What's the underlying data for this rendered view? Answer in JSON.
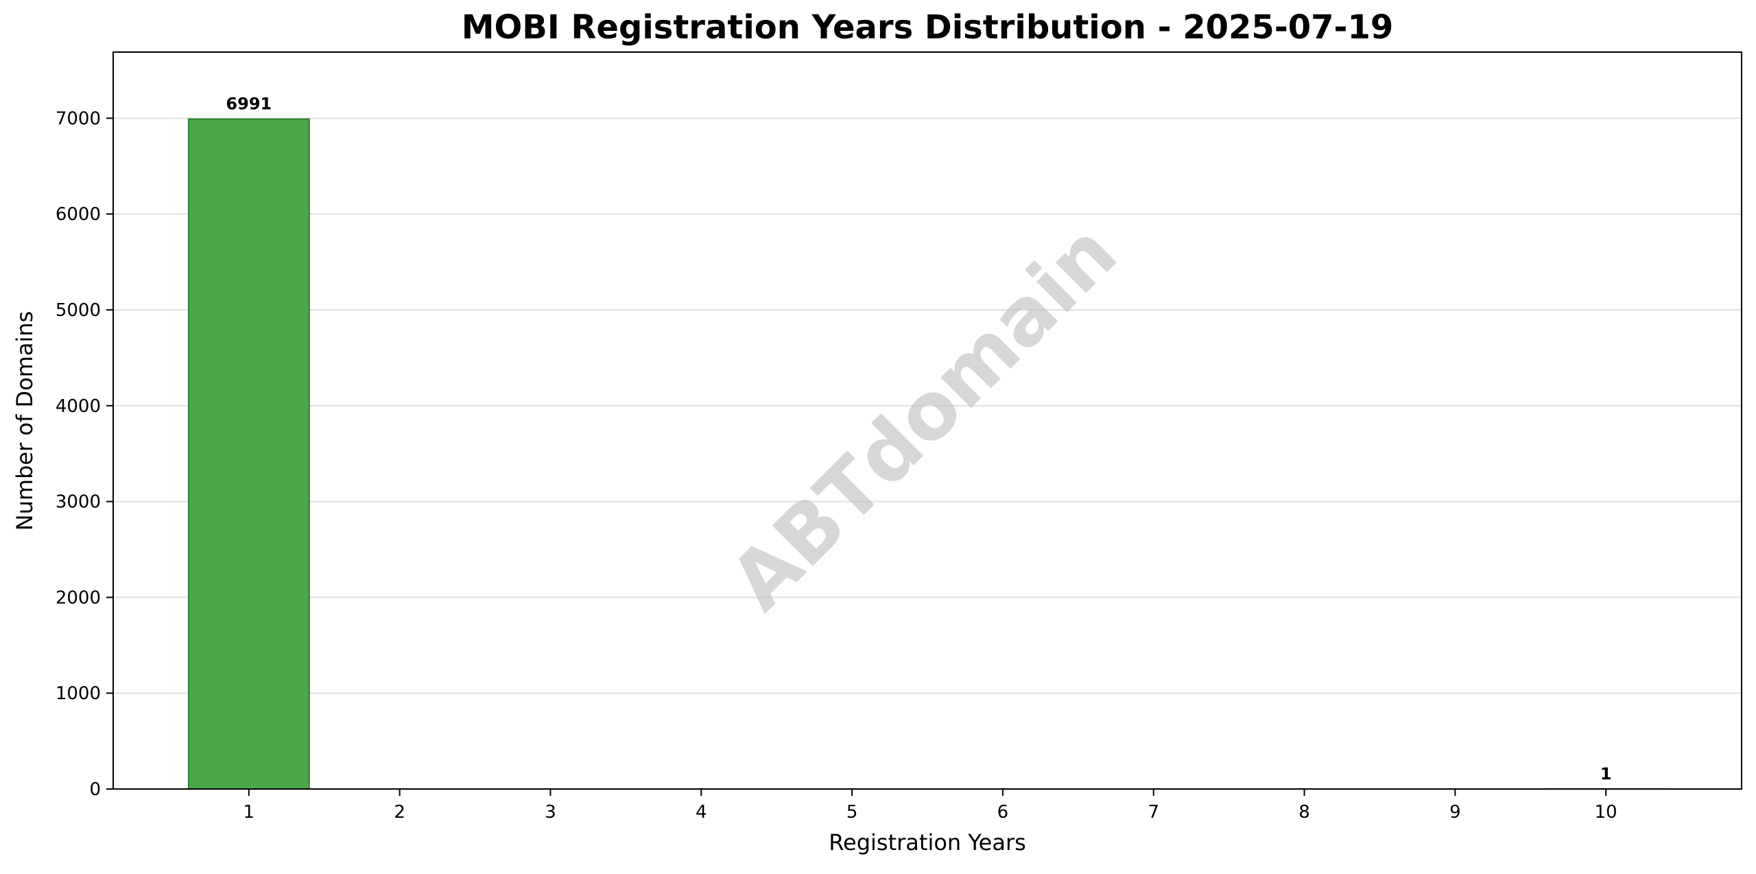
{
  "chart_data": {
    "type": "bar",
    "title": "MOBI Registration Years Distribution - 2025-07-19",
    "xlabel": "Registration Years",
    "ylabel": "Number of Domains",
    "categories": [
      "1",
      "2",
      "3",
      "4",
      "5",
      "6",
      "7",
      "8",
      "9",
      "10"
    ],
    "x": [
      1,
      2,
      3,
      4,
      5,
      6,
      7,
      8,
      9,
      10
    ],
    "values": [
      6991,
      0,
      0,
      0,
      0,
      0,
      0,
      0,
      0,
      1
    ],
    "data_labels": {
      "1": "6991",
      "10": "1"
    },
    "xlim": [
      0.1,
      10.9
    ],
    "ylim": [
      0,
      7690
    ],
    "yticks": [
      0,
      1000,
      2000,
      3000,
      4000,
      5000,
      6000,
      7000
    ],
    "ytick_labels": [
      "0",
      "1000",
      "2000",
      "3000",
      "4000",
      "5000",
      "6000",
      "7000"
    ],
    "grid": "y",
    "legend": "none",
    "bar_color": "#4ca64c",
    "bar_edge_color": "#2e7d32",
    "grid_color": "#e0e0e0",
    "watermark": "ABTdomain"
  }
}
